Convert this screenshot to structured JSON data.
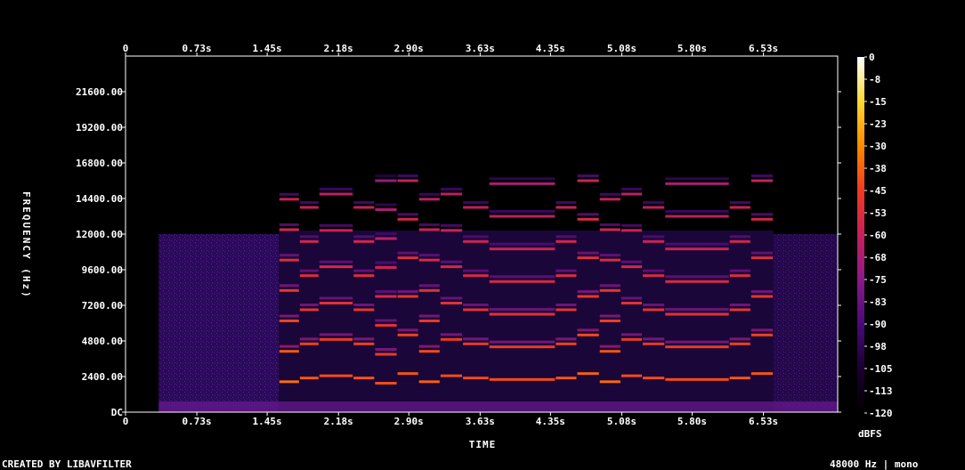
{
  "chart_data": {
    "type": "heatmap",
    "title": "",
    "xlabel": "TIME",
    "ylabel": "FREQUENCY (Hz)",
    "x_ticks": [
      "0",
      "0.73s",
      "1.45s",
      "2.18s",
      "2.90s",
      "3.63s",
      "4.35s",
      "5.08s",
      "5.80s",
      "6.53s"
    ],
    "x_tick_values": [
      0,
      0.73,
      1.45,
      2.18,
      2.9,
      3.63,
      4.35,
      5.08,
      5.8,
      6.53
    ],
    "xlim": [
      0,
      7.29
    ],
    "y_ticks": [
      "DC",
      "2400.00",
      "4800.00",
      "7200.00",
      "9600.00",
      "12000.00",
      "14400.00",
      "16800.00",
      "19200.00",
      "21600.00"
    ],
    "y_tick_values": [
      0,
      2400,
      4800,
      7200,
      9600,
      12000,
      14400,
      16800,
      19200,
      21600
    ],
    "ylim": [
      0,
      24000
    ],
    "colorbar": {
      "ticks": [
        "0",
        "-8",
        "-15",
        "-23",
        "-30",
        "-38",
        "-45",
        "-53",
        "-60",
        "-68",
        "-75",
        "-83",
        "-90",
        "-98",
        "-105",
        "-113",
        "-120"
      ],
      "range": [
        -120,
        0
      ],
      "unit": "dBFS",
      "colors": [
        "#000000",
        "#1a0030",
        "#4a0a7a",
        "#8a1a8a",
        "#c8205a",
        "#f03a20",
        "#ff8a00",
        "#ffd830",
        "#ffffff"
      ]
    },
    "notes": {
      "noise_floor_span_s": [
        0.34,
        1.57
      ],
      "noise_floor_top_hz": 12000,
      "tonal_span_s": [
        1.57,
        6.63
      ],
      "tail_noise_span_s": [
        6.63,
        7.29
      ]
    },
    "segments": [
      {
        "t0": 1.57,
        "t1": 1.78,
        "f0": 2050,
        "level": -35
      },
      {
        "t0": 1.78,
        "t1": 1.98,
        "f0": 2300,
        "level": -40
      },
      {
        "t0": 1.98,
        "t1": 2.33,
        "f0": 2450,
        "level": -42
      },
      {
        "t0": 2.33,
        "t1": 2.55,
        "f0": 2300,
        "level": -40
      },
      {
        "t0": 2.55,
        "t1": 2.78,
        "f0": 1950,
        "level": -42
      },
      {
        "t0": 2.78,
        "t1": 3.0,
        "f0": 2600,
        "level": -40
      },
      {
        "t0": 3.0,
        "t1": 3.22,
        "f0": 2050,
        "level": -38
      },
      {
        "t0": 3.22,
        "t1": 3.45,
        "f0": 2450,
        "level": -42
      },
      {
        "t0": 3.45,
        "t1": 3.72,
        "f0": 2300,
        "level": -42
      },
      {
        "t0": 3.72,
        "t1": 4.4,
        "f0": 2200,
        "level": -42
      },
      {
        "t0": 4.4,
        "t1": 4.62,
        "f0": 2300,
        "level": -40
      },
      {
        "t0": 4.62,
        "t1": 4.85,
        "f0": 2600,
        "level": -38
      },
      {
        "t0": 4.85,
        "t1": 5.07,
        "f0": 2050,
        "level": -36
      },
      {
        "t0": 5.07,
        "t1": 5.29,
        "f0": 2450,
        "level": -42
      },
      {
        "t0": 5.29,
        "t1": 5.52,
        "f0": 2300,
        "level": -42
      },
      {
        "t0": 5.52,
        "t1": 6.18,
        "f0": 2200,
        "level": -42
      },
      {
        "t0": 6.18,
        "t1": 6.4,
        "f0": 2300,
        "level": -40
      },
      {
        "t0": 6.4,
        "t1": 6.63,
        "f0": 2600,
        "level": -40
      }
    ]
  },
  "footer": {
    "credit": "CREATED BY LIBAVFILTER",
    "info": "48000 Hz | mono"
  }
}
